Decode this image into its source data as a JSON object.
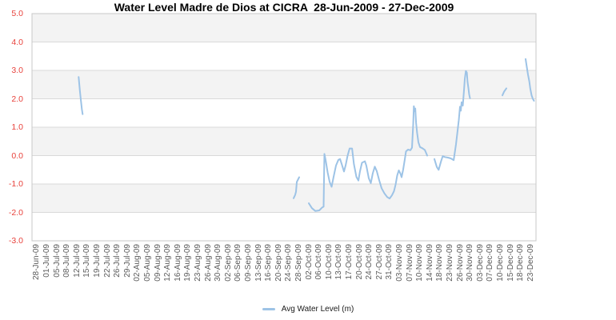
{
  "chart_data": {
    "type": "line",
    "title": "Water Level Madre de Dios at CICRA  28-Jun-2009 - 27-Dec-2009",
    "xlabel": "",
    "ylabel": "",
    "ylim": [
      -3.0,
      5.0
    ],
    "y_tick_labels": [
      "5.0",
      "4.0",
      "3.0",
      "2.0",
      "1.0",
      "0.0",
      "-1.0",
      "-2.0",
      "-3.0"
    ],
    "grid": "horizontal alternating bands, gridline each 1.0",
    "legend_position": "bottom-center",
    "x_categories": [
      "28-Jun-09",
      "01-Jul-09",
      "05-Jul-09",
      "08-Jul-09",
      "12-Jul-09",
      "15-Jul-09",
      "19-Jul-09",
      "22-Jul-09",
      "26-Jul-09",
      "29-Jul-09",
      "02-Aug-09",
      "05-Aug-09",
      "09-Aug-09",
      "12-Aug-09",
      "16-Aug-09",
      "19-Aug-09",
      "23-Aug-09",
      "26-Aug-09",
      "30-Aug-09",
      "02-Sep-09",
      "06-Sep-09",
      "09-Sep-09",
      "13-Sep-09",
      "16-Sep-09",
      "20-Sep-09",
      "24-Sep-09",
      "28-Sep-09",
      "02-Oct-09",
      "06-Oct-09",
      "10-Oct-09",
      "13-Oct-09",
      "17-Oct-09",
      "20-Oct-09",
      "24-Oct-09",
      "27-Oct-09",
      "31-Oct-09",
      "03-Nov-09",
      "07-Nov-09",
      "10-Nov-09",
      "14-Nov-09",
      "18-Nov-09",
      "23-Nov-09",
      "26-Nov-09",
      "30-Nov-09",
      "03-Dec-09",
      "07-Dec-09",
      "10-Dec-09",
      "15-Dec-09",
      "18-Dec-09",
      "23-Dec-09"
    ],
    "x_encoding": "fractional index into x_categories",
    "series": [
      {
        "name": "Avg Water Level (m)",
        "color": "#9dc3e6",
        "segments": [
          [
            [
              4.13,
              2.77
            ],
            [
              4.25,
              2.3
            ],
            [
              4.35,
              1.95
            ],
            [
              4.45,
              1.62
            ],
            [
              4.52,
              1.46
            ]
          ],
          [
            [
              25.45,
              -1.5
            ],
            [
              25.61,
              -1.38
            ],
            [
              25.69,
              -1.27
            ],
            [
              25.77,
              -0.93
            ],
            [
              26.01,
              -0.76
            ]
          ],
          [
            [
              26.96,
              -1.68
            ],
            [
              27.27,
              -1.85
            ],
            [
              27.6,
              -1.95
            ],
            [
              28.0,
              -1.93
            ],
            [
              28.31,
              -1.82
            ],
            [
              28.43,
              -1.8
            ],
            [
              28.51,
              0.06
            ],
            [
              28.63,
              -0.15
            ],
            [
              28.83,
              -0.6
            ],
            [
              29.02,
              -0.92
            ],
            [
              29.22,
              -1.1
            ],
            [
              29.42,
              -0.75
            ],
            [
              29.66,
              -0.35
            ],
            [
              29.9,
              -0.15
            ],
            [
              30.06,
              -0.12
            ],
            [
              30.25,
              -0.32
            ],
            [
              30.45,
              -0.56
            ],
            [
              30.61,
              -0.35
            ],
            [
              30.81,
              0.0
            ],
            [
              31.01,
              0.25
            ],
            [
              31.25,
              0.25
            ],
            [
              31.44,
              -0.3
            ],
            [
              31.68,
              -0.75
            ],
            [
              31.88,
              -0.88
            ],
            [
              32.04,
              -0.55
            ],
            [
              32.24,
              -0.25
            ],
            [
              32.52,
              -0.2
            ],
            [
              32.67,
              -0.35
            ],
            [
              32.91,
              -0.8
            ],
            [
              33.11,
              -0.97
            ],
            [
              33.31,
              -0.62
            ],
            [
              33.51,
              -0.39
            ],
            [
              33.71,
              -0.55
            ],
            [
              33.94,
              -0.86
            ],
            [
              34.18,
              -1.15
            ],
            [
              34.46,
              -1.33
            ],
            [
              34.74,
              -1.46
            ],
            [
              34.98,
              -1.51
            ],
            [
              35.21,
              -1.4
            ],
            [
              35.41,
              -1.25
            ],
            [
              35.57,
              -1.02
            ],
            [
              35.73,
              -0.7
            ],
            [
              35.89,
              -0.52
            ],
            [
              36.05,
              -0.63
            ],
            [
              36.17,
              -0.76
            ],
            [
              36.32,
              -0.5
            ],
            [
              36.48,
              -0.15
            ],
            [
              36.6,
              0.15
            ],
            [
              36.8,
              0.21
            ],
            [
              37.04,
              0.19
            ],
            [
              37.2,
              0.28
            ],
            [
              37.32,
              1.1
            ],
            [
              37.38,
              1.74
            ],
            [
              37.46,
              1.56
            ],
            [
              37.52,
              1.66
            ],
            [
              37.6,
              1.15
            ],
            [
              37.71,
              0.8
            ],
            [
              37.83,
              0.47
            ],
            [
              37.99,
              0.3
            ],
            [
              38.23,
              0.26
            ],
            [
              38.47,
              0.2
            ],
            [
              38.63,
              0.07
            ],
            [
              38.71,
              0.0
            ]
          ],
          [
            [
              39.42,
              -0.12
            ],
            [
              39.66,
              -0.4
            ],
            [
              39.84,
              -0.5
            ],
            [
              40.06,
              -0.22
            ],
            [
              40.25,
              -0.02
            ],
            [
              40.45,
              -0.05
            ],
            [
              40.77,
              -0.07
            ],
            [
              41.05,
              -0.1
            ],
            [
              41.33,
              -0.16
            ],
            [
              41.56,
              0.4
            ],
            [
              41.72,
              0.88
            ],
            [
              41.84,
              1.25
            ],
            [
              41.96,
              1.72
            ],
            [
              42.04,
              1.58
            ],
            [
              42.12,
              1.88
            ],
            [
              42.24,
              1.76
            ],
            [
              42.36,
              2.3
            ],
            [
              42.44,
              2.7
            ],
            [
              42.54,
              2.98
            ],
            [
              42.64,
              2.92
            ],
            [
              42.71,
              2.6
            ],
            [
              42.79,
              2.38
            ],
            [
              42.87,
              2.15
            ],
            [
              42.95,
              2.02
            ]
          ],
          [
            [
              46.17,
              2.12
            ],
            [
              46.33,
              2.25
            ],
            [
              46.56,
              2.37
            ]
          ],
          [
            [
              48.47,
              3.4
            ],
            [
              48.59,
              3.12
            ],
            [
              48.71,
              2.85
            ],
            [
              48.83,
              2.62
            ],
            [
              48.94,
              2.35
            ],
            [
              49.06,
              2.12
            ],
            [
              49.18,
              2.0
            ],
            [
              49.3,
              1.93
            ]
          ]
        ]
      }
    ],
    "colors": {
      "line": "#9dc3e6",
      "y_tick_text": "#e8423c",
      "x_tick_text": "#595959",
      "band_gray": "#f3f3f3",
      "gridline": "#d9d9d9",
      "plot_border": "#c8c8c8",
      "background": "#ffffff",
      "title_text": "#000000"
    },
    "legend": {
      "label": "Avg Water Level (m)"
    }
  }
}
